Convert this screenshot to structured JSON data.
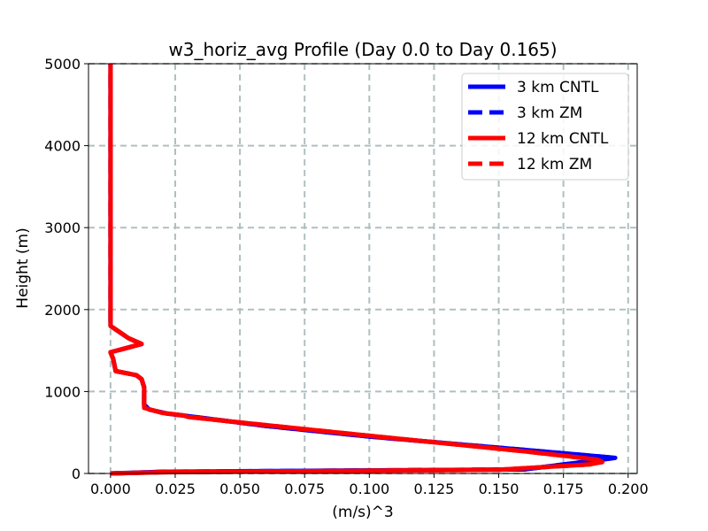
{
  "chart_data": {
    "type": "line",
    "title": "w3_horiz_avg Profile (Day 0.0 to Day 0.165)",
    "xlabel": "(m/s)^3",
    "ylabel": "Height (m)",
    "xlim": [
      -0.0085,
      0.2035
    ],
    "ylim": [
      0,
      5000
    ],
    "xticks": [
      0.0,
      0.025,
      0.05,
      0.075,
      0.1,
      0.125,
      0.15,
      0.175,
      0.2
    ],
    "xtick_labels": [
      "0.000",
      "0.025",
      "0.050",
      "0.075",
      "0.100",
      "0.125",
      "0.150",
      "0.175",
      "0.200"
    ],
    "yticks": [
      0,
      1000,
      2000,
      3000,
      4000,
      5000
    ],
    "ytick_labels": [
      "0",
      "1000",
      "2000",
      "3000",
      "4000",
      "5000"
    ],
    "grid": true,
    "legend_position": "top-right",
    "series": [
      {
        "name": "3 km CNTL",
        "color": "#0000ff",
        "style": "solid",
        "points": [
          [
            0.0,
            0
          ],
          [
            0.02,
            20
          ],
          [
            0.16,
            50
          ],
          [
            0.18,
            130
          ],
          [
            0.195,
            190
          ],
          [
            0.17,
            260
          ],
          [
            0.1,
            450
          ],
          [
            0.06,
            580
          ],
          [
            0.03,
            700
          ],
          [
            0.022,
            730
          ],
          [
            0.015,
            780
          ],
          [
            0.013,
            840
          ],
          [
            0.013,
            900
          ],
          [
            0.013,
            1050
          ],
          [
            0.012,
            1150
          ],
          [
            0.01,
            1200
          ],
          [
            0.002,
            1250
          ],
          [
            0.001,
            1400
          ],
          [
            0.0,
            1480
          ],
          [
            0.005,
            1520
          ],
          [
            0.012,
            1580
          ],
          [
            0.007,
            1650
          ],
          [
            0.0,
            1800
          ],
          [
            0.0,
            1850
          ],
          [
            0.0,
            2200
          ],
          [
            0.0,
            5000
          ]
        ]
      },
      {
        "name": "3 km ZM",
        "color": "#0000ff",
        "style": "dashed",
        "points": [
          [
            0.0,
            0
          ],
          [
            0.02,
            20
          ],
          [
            0.16,
            50
          ],
          [
            0.18,
            130
          ],
          [
            0.195,
            190
          ],
          [
            0.17,
            260
          ],
          [
            0.1,
            450
          ],
          [
            0.06,
            580
          ],
          [
            0.03,
            700
          ],
          [
            0.022,
            730
          ],
          [
            0.015,
            780
          ],
          [
            0.013,
            840
          ],
          [
            0.013,
            900
          ],
          [
            0.013,
            1050
          ],
          [
            0.012,
            1150
          ],
          [
            0.01,
            1200
          ],
          [
            0.002,
            1250
          ],
          [
            0.001,
            1400
          ],
          [
            0.0,
            1480
          ],
          [
            0.005,
            1520
          ],
          [
            0.012,
            1580
          ],
          [
            0.007,
            1650
          ],
          [
            0.0,
            1800
          ],
          [
            0.0,
            1850
          ],
          [
            0.0,
            2200
          ],
          [
            0.0,
            5000
          ]
        ]
      },
      {
        "name": "12 km CNTL",
        "color": "#ff0000",
        "style": "solid",
        "points": [
          [
            0.0,
            0
          ],
          [
            0.02,
            15
          ],
          [
            0.15,
            45
          ],
          [
            0.185,
            110
          ],
          [
            0.19,
            140
          ],
          [
            0.188,
            170
          ],
          [
            0.16,
            270
          ],
          [
            0.1,
            460
          ],
          [
            0.06,
            590
          ],
          [
            0.03,
            690
          ],
          [
            0.028,
            710
          ],
          [
            0.02,
            740
          ],
          [
            0.013,
            800
          ],
          [
            0.013,
            850
          ],
          [
            0.013,
            1050
          ],
          [
            0.012,
            1150
          ],
          [
            0.01,
            1200
          ],
          [
            0.002,
            1250
          ],
          [
            0.001,
            1400
          ],
          [
            0.0,
            1480
          ],
          [
            0.005,
            1520
          ],
          [
            0.012,
            1580
          ],
          [
            0.007,
            1650
          ],
          [
            0.0,
            1800
          ],
          [
            0.0,
            1850
          ],
          [
            0.0,
            2200
          ],
          [
            0.0,
            5000
          ]
        ]
      },
      {
        "name": "12 km ZM",
        "color": "#ff0000",
        "style": "dashed",
        "points": [
          [
            0.0,
            0
          ],
          [
            0.02,
            15
          ],
          [
            0.15,
            45
          ],
          [
            0.185,
            110
          ],
          [
            0.19,
            140
          ],
          [
            0.188,
            170
          ],
          [
            0.16,
            270
          ],
          [
            0.1,
            460
          ],
          [
            0.06,
            590
          ],
          [
            0.03,
            690
          ],
          [
            0.028,
            710
          ],
          [
            0.02,
            740
          ],
          [
            0.013,
            800
          ],
          [
            0.013,
            850
          ],
          [
            0.013,
            1050
          ],
          [
            0.012,
            1150
          ],
          [
            0.01,
            1200
          ],
          [
            0.002,
            1250
          ],
          [
            0.001,
            1400
          ],
          [
            0.0,
            1480
          ],
          [
            0.005,
            1520
          ],
          [
            0.012,
            1580
          ],
          [
            0.007,
            1650
          ],
          [
            0.0,
            1800
          ],
          [
            0.0,
            1850
          ],
          [
            0.0,
            2200
          ],
          [
            0.0,
            5000
          ]
        ]
      }
    ]
  }
}
